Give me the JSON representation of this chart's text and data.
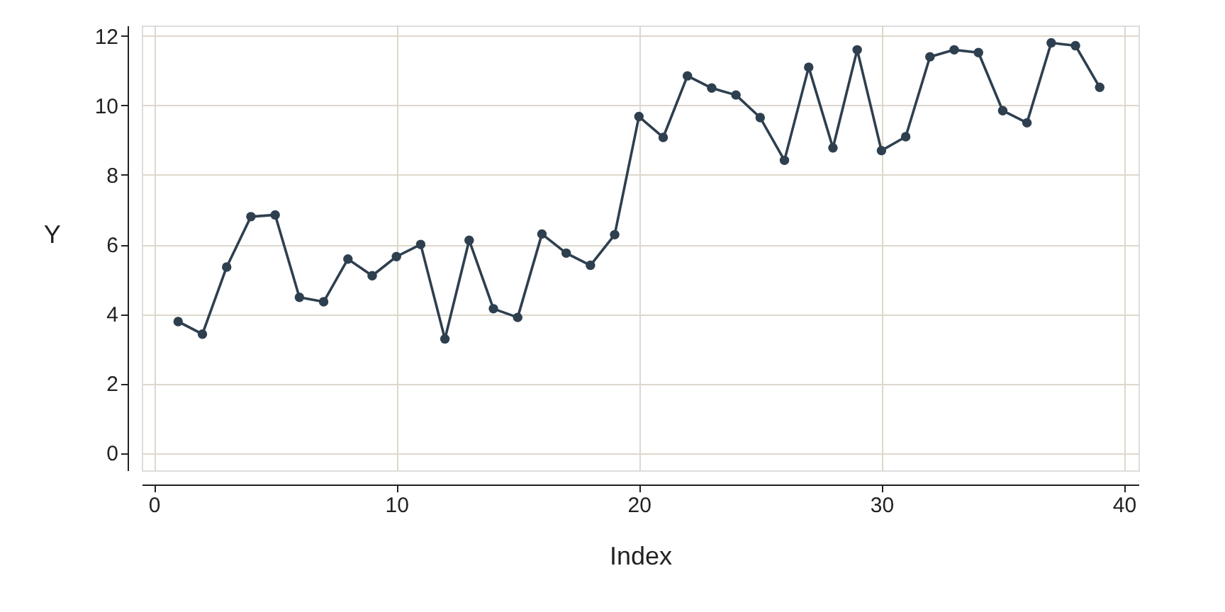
{
  "chart_data": {
    "type": "line",
    "xlabel": "Index",
    "ylabel": "Y",
    "x": [
      1,
      2,
      3,
      4,
      5,
      6,
      7,
      8,
      9,
      10,
      11,
      12,
      13,
      14,
      15,
      16,
      17,
      18,
      19,
      20,
      21,
      22,
      23,
      24,
      25,
      26,
      27,
      28,
      29,
      30,
      31,
      32,
      33,
      34,
      35,
      36,
      37,
      38,
      39
    ],
    "series": [
      {
        "color": "#2e3f4f",
        "values": [
          3.78,
          3.42,
          5.35,
          6.8,
          6.85,
          4.48,
          4.35,
          5.58,
          5.1,
          5.65,
          6.0,
          3.28,
          6.12,
          4.15,
          3.9,
          6.3,
          5.75,
          5.4,
          6.28,
          9.68,
          9.08,
          10.85,
          10.5,
          10.3,
          9.65,
          8.42,
          11.1,
          8.78,
          11.6,
          8.7,
          9.1,
          11.4,
          11.6,
          11.52,
          9.85,
          9.5,
          11.8,
          11.72,
          10.52
        ]
      }
    ],
    "xlim": [
      -0.5,
      40.6
    ],
    "ylim": [
      -0.5,
      12.3
    ],
    "xticks": [
      0,
      10,
      20,
      30,
      40
    ],
    "yticks": [
      0,
      2,
      4,
      6,
      8,
      10,
      12
    ],
    "grid": true,
    "marker": "circle",
    "line_style": "solid",
    "legend": false
  }
}
